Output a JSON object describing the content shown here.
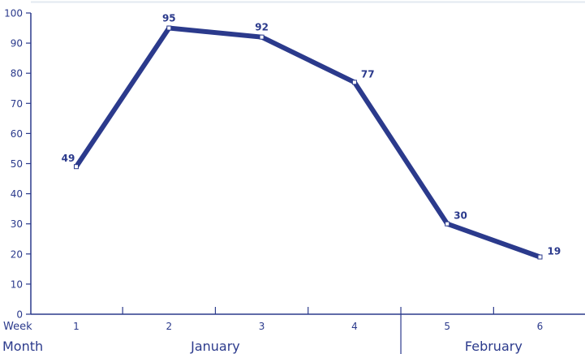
{
  "chart_data": {
    "type": "line",
    "title": "",
    "xlabel": "",
    "ylabel": "",
    "ylim": [
      0,
      100
    ],
    "yticks": [
      "0",
      "10",
      "20",
      "30",
      "40",
      "50",
      "60",
      "70",
      "80",
      "90",
      "100"
    ],
    "x_row_label": "Week",
    "month_row_label": "Month",
    "categories": [
      "1",
      "2",
      "3",
      "4",
      "5",
      "6"
    ],
    "values": [
      49,
      95,
      92,
      77,
      30,
      19
    ],
    "data_labels": [
      "49",
      "95",
      "92",
      "77",
      "30",
      "19"
    ],
    "months": [
      {
        "name": "January",
        "weeks": [
          1,
          4
        ]
      },
      {
        "name": "February",
        "weeks": [
          5,
          6
        ]
      }
    ],
    "grid": false,
    "top_rule": true,
    "colors": {
      "line": "#2b3a8c",
      "axis": "#2b3a8c",
      "top_rule": "#e2e8f0",
      "marker_fill": "#ffffff"
    }
  }
}
